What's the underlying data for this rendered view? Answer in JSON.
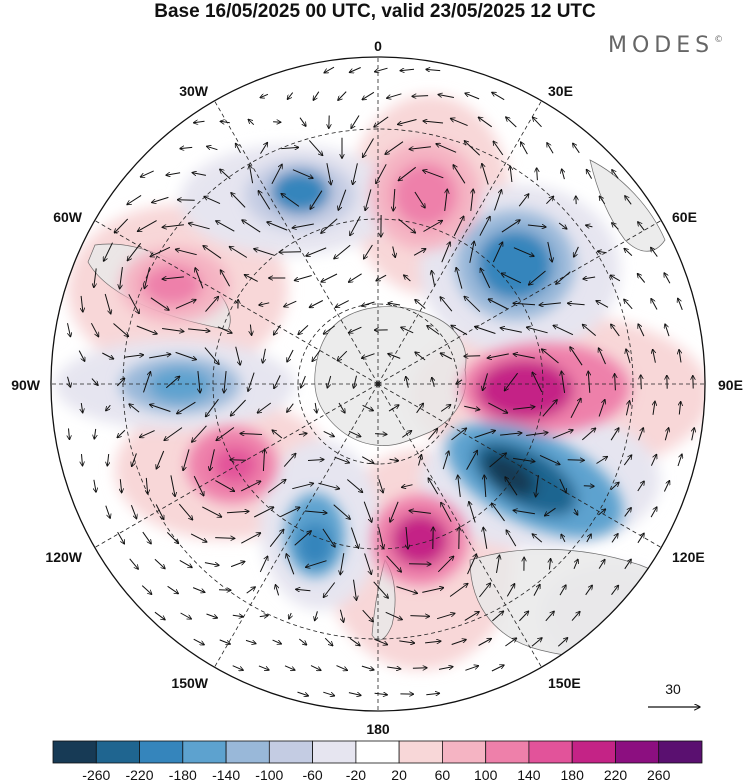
{
  "title": "Base 16/05/2025 00 UTC, valid 23/05/2025 12 UTC",
  "brand": {
    "name": "MODES",
    "mark": "©"
  },
  "longitude_labels": {
    "top": "0",
    "top_right": "30E",
    "upper_right": "60E",
    "right": "90E",
    "lower_right": "120E",
    "bottom_right": "150E",
    "bottom": "180",
    "bottom_left": "150W",
    "lower_left": "120W",
    "left": "90W",
    "upper_left": "60W",
    "top_left": "30W"
  },
  "reference_vector": {
    "label": "30"
  },
  "colorbar": {
    "labels": [
      "-260",
      "-220",
      "-180",
      "-140",
      "-100",
      "-60",
      "-20",
      "20",
      "60",
      "100",
      "140",
      "180",
      "220",
      "260"
    ],
    "colors": [
      "#173a55",
      "#1f6590",
      "#3585bc",
      "#5da2cf",
      "#99b8d9",
      "#c4cce3",
      "#e6e5f0",
      "#ffffff",
      "#f8d7d8",
      "#f5b4c3",
      "#ee80aa",
      "#e2539a",
      "#c42386",
      "#8c0f80",
      "#5a1070"
    ]
  },
  "anomalies": [
    {
      "name": "c1",
      "color": "#3585bc",
      "level": -180
    },
    {
      "name": "c2",
      "color": "#ee80aa",
      "level": 140
    },
    {
      "name": "c3",
      "color": "#3585bc",
      "level": -180
    },
    {
      "name": "c4",
      "color": "#c42386",
      "level": 220
    },
    {
      "name": "c5",
      "color": "#173a55",
      "level": -260
    },
    {
      "name": "c6",
      "color": "#c42386",
      "level": 180
    },
    {
      "name": "c7",
      "color": "#3585bc",
      "level": -180
    },
    {
      "name": "c8",
      "color": "#e2539a",
      "level": 180
    },
    {
      "name": "c9",
      "color": "#5da2cf",
      "level": -140
    },
    {
      "name": "c10",
      "color": "#ee80aa",
      "level": 140
    }
  ]
}
